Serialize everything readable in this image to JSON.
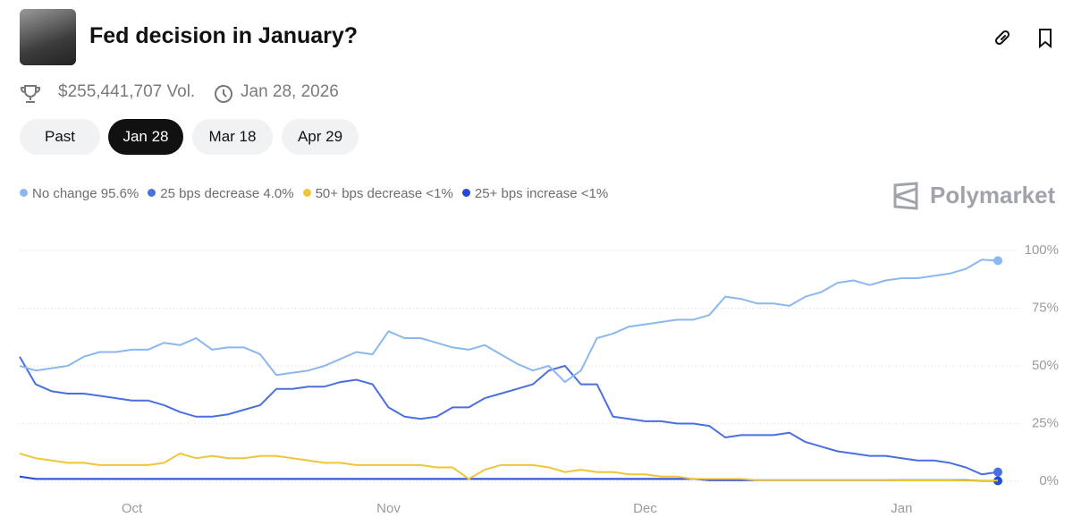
{
  "header": {
    "title": "Fed decision in January?",
    "volume": "$255,441,707 Vol.",
    "date": "Jan 28, 2026"
  },
  "tabs": [
    "Past",
    "Jan 28",
    "Mar 18",
    "Apr 29"
  ],
  "active_tab": 1,
  "brand": "Polymarket",
  "chart_data": {
    "type": "line",
    "categories": [
      null,
      null,
      null,
      null,
      null,
      null,
      null,
      "Oct",
      null,
      null,
      null,
      null,
      null,
      null,
      null,
      null,
      null,
      null,
      null,
      null,
      null,
      null,
      null,
      "Nov",
      null,
      null,
      null,
      null,
      null,
      null,
      null,
      null,
      null,
      null,
      null,
      null,
      null,
      null,
      null,
      "Dec",
      null,
      null,
      null,
      null,
      null,
      null,
      null,
      null,
      null,
      null,
      null,
      null,
      null,
      null,
      null,
      "Jan",
      null,
      null,
      null,
      null,
      null,
      null
    ],
    "series": [
      {
        "name": "No change",
        "legend_value": "95.6%",
        "color": "#8ab8ef",
        "values": [
          50,
          48,
          49,
          50,
          54,
          56,
          56,
          57,
          57,
          60,
          59,
          62,
          57,
          58,
          58,
          55,
          46,
          47,
          48,
          50,
          53,
          56,
          55,
          65,
          62,
          62,
          60,
          58,
          57,
          59,
          55,
          51,
          48,
          50,
          43,
          48,
          62,
          64,
          67,
          68,
          69,
          70,
          70,
          72,
          80,
          79,
          77,
          77,
          76,
          80,
          82,
          86,
          87,
          85,
          87,
          88,
          88,
          89,
          90,
          92,
          96,
          95.6
        ]
      },
      {
        "name": "25 bps decrease",
        "legend_value": "4.0%",
        "color": "#4a6fe0",
        "values": [
          54,
          42,
          39,
          38,
          38,
          37,
          36,
          35,
          35,
          33,
          30,
          28,
          28,
          29,
          31,
          33,
          40,
          40,
          41,
          41,
          43,
          44,
          42,
          32,
          28,
          27,
          28,
          32,
          32,
          36,
          38,
          40,
          42,
          48,
          50,
          42,
          42,
          28,
          27,
          26,
          26,
          25,
          25,
          24,
          19,
          20,
          20,
          20,
          21,
          17,
          15,
          13,
          12,
          11,
          11,
          10,
          9,
          9,
          8,
          6,
          3,
          4
        ]
      },
      {
        "name": "50+ bps decrease",
        "legend_value": "<1%",
        "color": "#f0c53a",
        "values": [
          12,
          10,
          9,
          8,
          8,
          7,
          7,
          7,
          7,
          8,
          12,
          10,
          11,
          10,
          10,
          11,
          11,
          10,
          9,
          8,
          8,
          7,
          7,
          7,
          7,
          7,
          6,
          6,
          1,
          5,
          7,
          7,
          7,
          6,
          4,
          5,
          4,
          4,
          3,
          3,
          2,
          2,
          1,
          1,
          1,
          1,
          0.5,
          0.5,
          0.5,
          0.5,
          0.5,
          0.5,
          0.5,
          0.5,
          0.5,
          0.4,
          0.4,
          0.4,
          0.4,
          0.3,
          0.3,
          0.3
        ]
      },
      {
        "name": "25+ bps increase",
        "legend_value": "<1%",
        "color": "#2448d8",
        "values": [
          2,
          1,
          1,
          1,
          1,
          1,
          1,
          1,
          1,
          1,
          1,
          1,
          1,
          1,
          1,
          1,
          1,
          1,
          1,
          1,
          1,
          1,
          1,
          1,
          1,
          1,
          1,
          1,
          1,
          1,
          1,
          1,
          1,
          1,
          1,
          1,
          1,
          1,
          1,
          1,
          1,
          1,
          1,
          0.5,
          0.5,
          0.5,
          0.5,
          0.5,
          0.5,
          0.5,
          0.5,
          0.5,
          0.5,
          0.5,
          0.5,
          0.5,
          0.5,
          0.5,
          0.5,
          0.5,
          0.2,
          0.2
        ]
      }
    ],
    "ylim": [
      0,
      100
    ],
    "yticks": [
      {
        "value": 0,
        "label": "0%"
      },
      {
        "value": 25,
        "label": "25%"
      },
      {
        "value": 50,
        "label": "50%"
      },
      {
        "value": 75,
        "label": "75%"
      },
      {
        "value": 100,
        "label": "100%"
      }
    ],
    "grid": true
  }
}
